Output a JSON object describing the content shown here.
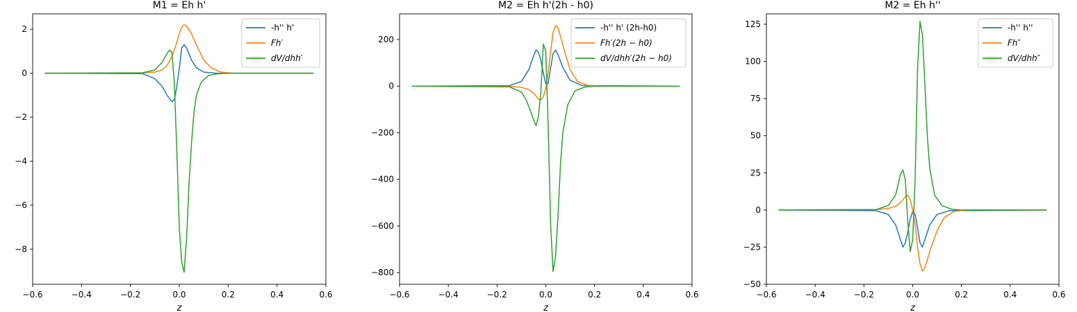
{
  "colors": {
    "blue": "#1f77b4",
    "orange": "#ff7f0e",
    "green": "#2ca02c"
  },
  "chart_data": [
    {
      "type": "line",
      "title": "M1 = Eh h'",
      "xlabel": "z",
      "ylabel": "",
      "xlim": [
        -0.6,
        0.6
      ],
      "ylim": [
        -9.6,
        2.7
      ],
      "xticks": [
        -0.6,
        -0.4,
        -0.2,
        0.0,
        0.2,
        0.4,
        0.6
      ],
      "xtick_labels": [
        "−0.6",
        "−0.4",
        "−0.2",
        "0.0",
        "0.2",
        "0.4",
        "0.6"
      ],
      "yticks": [
        2,
        0,
        -2,
        -4,
        -6,
        -8
      ],
      "ytick_labels": [
        "2",
        "0",
        "−2",
        "−4",
        "−6",
        "−8"
      ],
      "legend_position": "top-right",
      "series": [
        {
          "name": "-h'' h'",
          "color": "#1f77b4",
          "x": [
            -0.55,
            -0.15,
            -0.1,
            -0.07,
            -0.05,
            -0.03,
            -0.02,
            -0.01,
            0.0,
            0.01,
            0.02,
            0.03,
            0.05,
            0.07,
            0.1,
            0.15,
            0.55
          ],
          "y": [
            0,
            -0.02,
            -0.25,
            -0.6,
            -1.0,
            -1.3,
            -1.2,
            -0.6,
            0.2,
            1.15,
            1.3,
            1.15,
            0.6,
            0.25,
            0.05,
            0.0,
            0
          ]
        },
        {
          "name": "Fh′",
          "color": "#ff7f0e",
          "x": [
            -0.55,
            -0.15,
            -0.1,
            -0.07,
            -0.05,
            -0.03,
            -0.01,
            0.0,
            0.01,
            0.02,
            0.03,
            0.05,
            0.07,
            0.1,
            0.13,
            0.17,
            0.22,
            0.55
          ],
          "y": [
            0,
            0.01,
            0.05,
            0.15,
            0.35,
            0.75,
            1.4,
            1.8,
            2.1,
            2.2,
            2.15,
            1.8,
            1.3,
            0.6,
            0.25,
            0.05,
            0.0,
            0
          ]
        },
        {
          "name": "dV/dhh′",
          "color": "#2ca02c",
          "x": [
            -0.55,
            -0.15,
            -0.1,
            -0.07,
            -0.05,
            -0.04,
            -0.03,
            -0.02,
            -0.01,
            0.0,
            0.01,
            0.02,
            0.03,
            0.04,
            0.05,
            0.06,
            0.07,
            0.09,
            0.12,
            0.16,
            0.2,
            0.55
          ],
          "y": [
            0,
            0.02,
            0.15,
            0.5,
            0.9,
            1.05,
            0.95,
            -0.5,
            -3.5,
            -7.0,
            -8.6,
            -9.05,
            -7.5,
            -5.0,
            -3.2,
            -1.8,
            -1.0,
            -0.4,
            -0.1,
            -0.02,
            0,
            0
          ]
        }
      ]
    },
    {
      "type": "line",
      "title": "M2 = Eh h'(2h - h0)",
      "xlabel": "z",
      "ylabel": "",
      "xlim": [
        -0.6,
        0.6
      ],
      "ylim": [
        -850,
        310
      ],
      "xticks": [
        -0.6,
        -0.4,
        -0.2,
        0.0,
        0.2,
        0.4,
        0.6
      ],
      "xtick_labels": [
        "−0.6",
        "−0.4",
        "−0.2",
        "0.0",
        "0.2",
        "0.4",
        "0.6"
      ],
      "yticks": [
        200,
        0,
        -200,
        -400,
        -600,
        -800
      ],
      "ytick_labels": [
        "200",
        "0",
        "−200",
        "−400",
        "−600",
        "−800"
      ],
      "legend_position": "top-right",
      "series": [
        {
          "name": "-h'' h' (2h-h0)",
          "color": "#1f77b4",
          "x": [
            -0.55,
            -0.15,
            -0.1,
            -0.07,
            -0.05,
            -0.04,
            -0.03,
            -0.02,
            -0.01,
            0.0,
            0.01,
            0.02,
            0.03,
            0.04,
            0.05,
            0.07,
            0.1,
            0.15,
            0.55
          ],
          "y": [
            0,
            2,
            20,
            70,
            130,
            155,
            145,
            110,
            55,
            10,
            12,
            80,
            140,
            155,
            135,
            80,
            25,
            2,
            0
          ]
        },
        {
          "name": "Fh′(2h − h0)",
          "color": "#ff7f0e",
          "x": [
            -0.55,
            -0.15,
            -0.1,
            -0.07,
            -0.05,
            -0.03,
            -0.02,
            -0.01,
            0.0,
            0.01,
            0.02,
            0.03,
            0.04,
            0.05,
            0.06,
            0.08,
            0.1,
            0.13,
            0.17,
            0.22,
            0.55
          ],
          "y": [
            0,
            -1,
            -5,
            -15,
            -30,
            -55,
            -60,
            -45,
            -10,
            60,
            150,
            230,
            260,
            250,
            215,
            140,
            70,
            20,
            4,
            0,
            0
          ]
        },
        {
          "name": "dV/dhh′(2h − h0)",
          "color": "#2ca02c",
          "x": [
            -0.55,
            -0.15,
            -0.1,
            -0.08,
            -0.06,
            -0.05,
            -0.04,
            -0.03,
            -0.02,
            -0.01,
            0.0,
            0.01,
            0.02,
            0.03,
            0.04,
            0.05,
            0.06,
            0.07,
            0.09,
            0.12,
            0.16,
            0.2,
            0.55
          ],
          "y": [
            0,
            -3,
            -25,
            -60,
            -115,
            -145,
            -170,
            -130,
            -20,
            180,
            150,
            -180,
            -600,
            -795,
            -730,
            -560,
            -340,
            -200,
            -80,
            -20,
            -4,
            0,
            0
          ]
        }
      ]
    },
    {
      "type": "line",
      "title": "M2 = Eh h''",
      "xlabel": "z",
      "ylabel": "",
      "xlim": [
        -0.6,
        0.6
      ],
      "ylim": [
        -50,
        132
      ],
      "xticks": [
        -0.6,
        -0.4,
        -0.2,
        0.0,
        0.2,
        0.4,
        0.6
      ],
      "xtick_labels": [
        "−0.6",
        "−0.4",
        "−0.2",
        "0.0",
        "0.2",
        "0.4",
        "0.6"
      ],
      "yticks": [
        125,
        100,
        75,
        50,
        25,
        0,
        -25,
        -50
      ],
      "ytick_labels": [
        "125",
        "100",
        "75",
        "50",
        "25",
        "0",
        "−25",
        "−50"
      ],
      "legend_position": "top-right",
      "series": [
        {
          "name": "-h'' h''",
          "color": "#1f77b4",
          "x": [
            -0.55,
            -0.15,
            -0.1,
            -0.07,
            -0.05,
            -0.04,
            -0.03,
            -0.02,
            -0.01,
            0.0,
            0.01,
            0.02,
            0.03,
            0.04,
            0.05,
            0.07,
            0.1,
            0.15,
            0.55
          ],
          "y": [
            0,
            -0.5,
            -3,
            -10,
            -20,
            -25,
            -22,
            -15,
            -6,
            -1,
            -3,
            -12,
            -22,
            -25,
            -20,
            -10,
            -3,
            -0.5,
            0
          ]
        },
        {
          "name": "Fh″",
          "color": "#ff7f0e",
          "x": [
            -0.55,
            -0.15,
            -0.1,
            -0.07,
            -0.05,
            -0.04,
            -0.03,
            -0.02,
            -0.01,
            0.0,
            0.01,
            0.02,
            0.03,
            0.04,
            0.05,
            0.07,
            0.1,
            0.13,
            0.17,
            0.22,
            0.55
          ],
          "y": [
            0,
            0.2,
            1,
            2.5,
            5,
            7,
            9,
            10,
            7,
            0,
            -10,
            -25,
            -36,
            -41,
            -39,
            -28,
            -14,
            -5,
            -1,
            0,
            0
          ]
        },
        {
          "name": "dV/dhh″",
          "color": "#2ca02c",
          "x": [
            -0.55,
            -0.15,
            -0.1,
            -0.07,
            -0.06,
            -0.05,
            -0.04,
            -0.03,
            -0.02,
            -0.01,
            0.0,
            0.01,
            0.02,
            0.03,
            0.04,
            0.05,
            0.06,
            0.07,
            0.09,
            0.12,
            0.16,
            0.2,
            0.55
          ],
          "y": [
            0,
            0.3,
            3,
            10,
            17,
            24,
            27,
            20,
            -8,
            -28,
            -20,
            20,
            95,
            127,
            118,
            85,
            50,
            28,
            10,
            3,
            0.5,
            0,
            0
          ]
        }
      ]
    }
  ]
}
